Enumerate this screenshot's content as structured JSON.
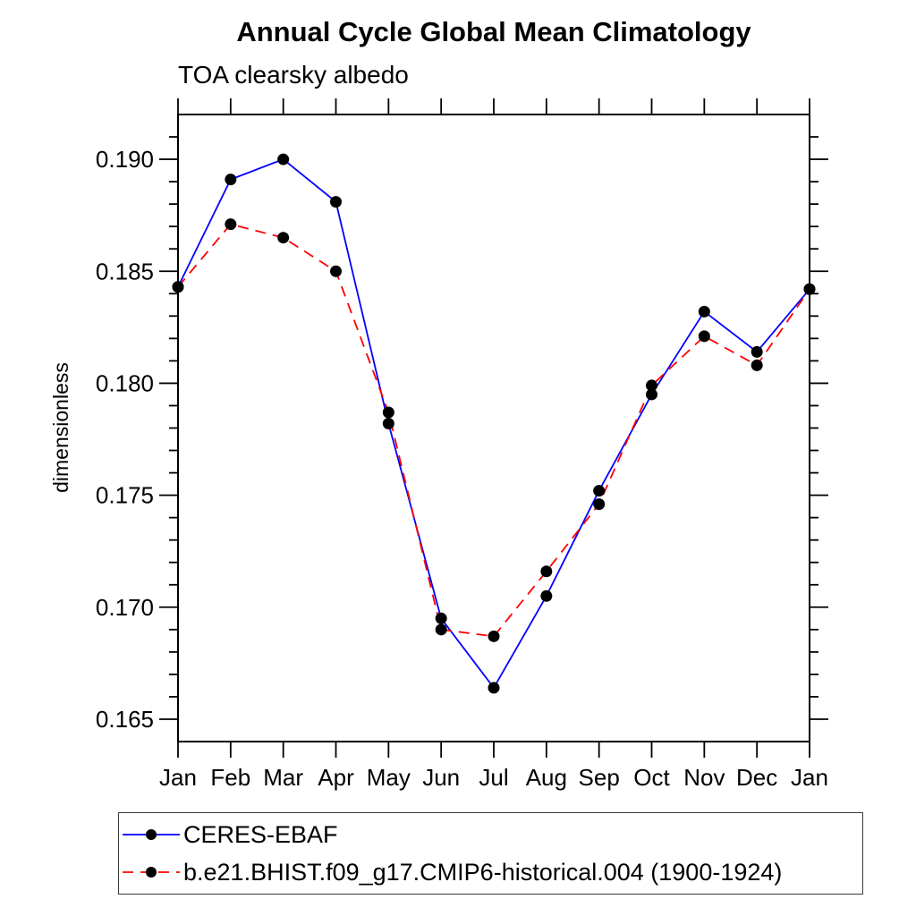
{
  "chart_data": {
    "type": "line",
    "title": "Annual Cycle Global Mean Climatology",
    "subtitle": "TOA clearsky albedo",
    "ylabel": "dimensionless",
    "categories": [
      "Jan",
      "Feb",
      "Mar",
      "Apr",
      "May",
      "Jun",
      "Jul",
      "Aug",
      "Sep",
      "Oct",
      "Nov",
      "Dec",
      "Jan"
    ],
    "ylim": [
      0.164,
      0.192
    ],
    "yticks": [
      0.165,
      0.17,
      0.175,
      0.18,
      0.185,
      0.19
    ],
    "ytick_labels": [
      "0.165",
      "0.170",
      "0.175",
      "0.180",
      "0.185",
      "0.190"
    ],
    "minor_tick_step": 0.001,
    "grid": false,
    "legend_position": "bottom-left",
    "marker": "filled-circle",
    "marker_color": "#000000",
    "axis_color": "#000000",
    "series": [
      {
        "name": "CERES-EBAF",
        "color": "#0000ff",
        "line_style": "solid",
        "values": [
          0.1843,
          0.1891,
          0.19,
          0.1881,
          0.1782,
          0.1695,
          0.1664,
          0.1705,
          0.1752,
          0.1795,
          0.1832,
          0.1814,
          0.1842
        ]
      },
      {
        "name": "b.e21.BHIST.f09_g17.CMIP6-historical.004 (1900-1924)",
        "color": "#ff0000",
        "line_style": "dashed",
        "values": [
          0.1843,
          0.1871,
          0.1865,
          0.185,
          0.1787,
          0.169,
          0.1687,
          0.1716,
          0.1746,
          0.1799,
          0.1821,
          0.1808,
          0.1842
        ]
      }
    ]
  }
}
